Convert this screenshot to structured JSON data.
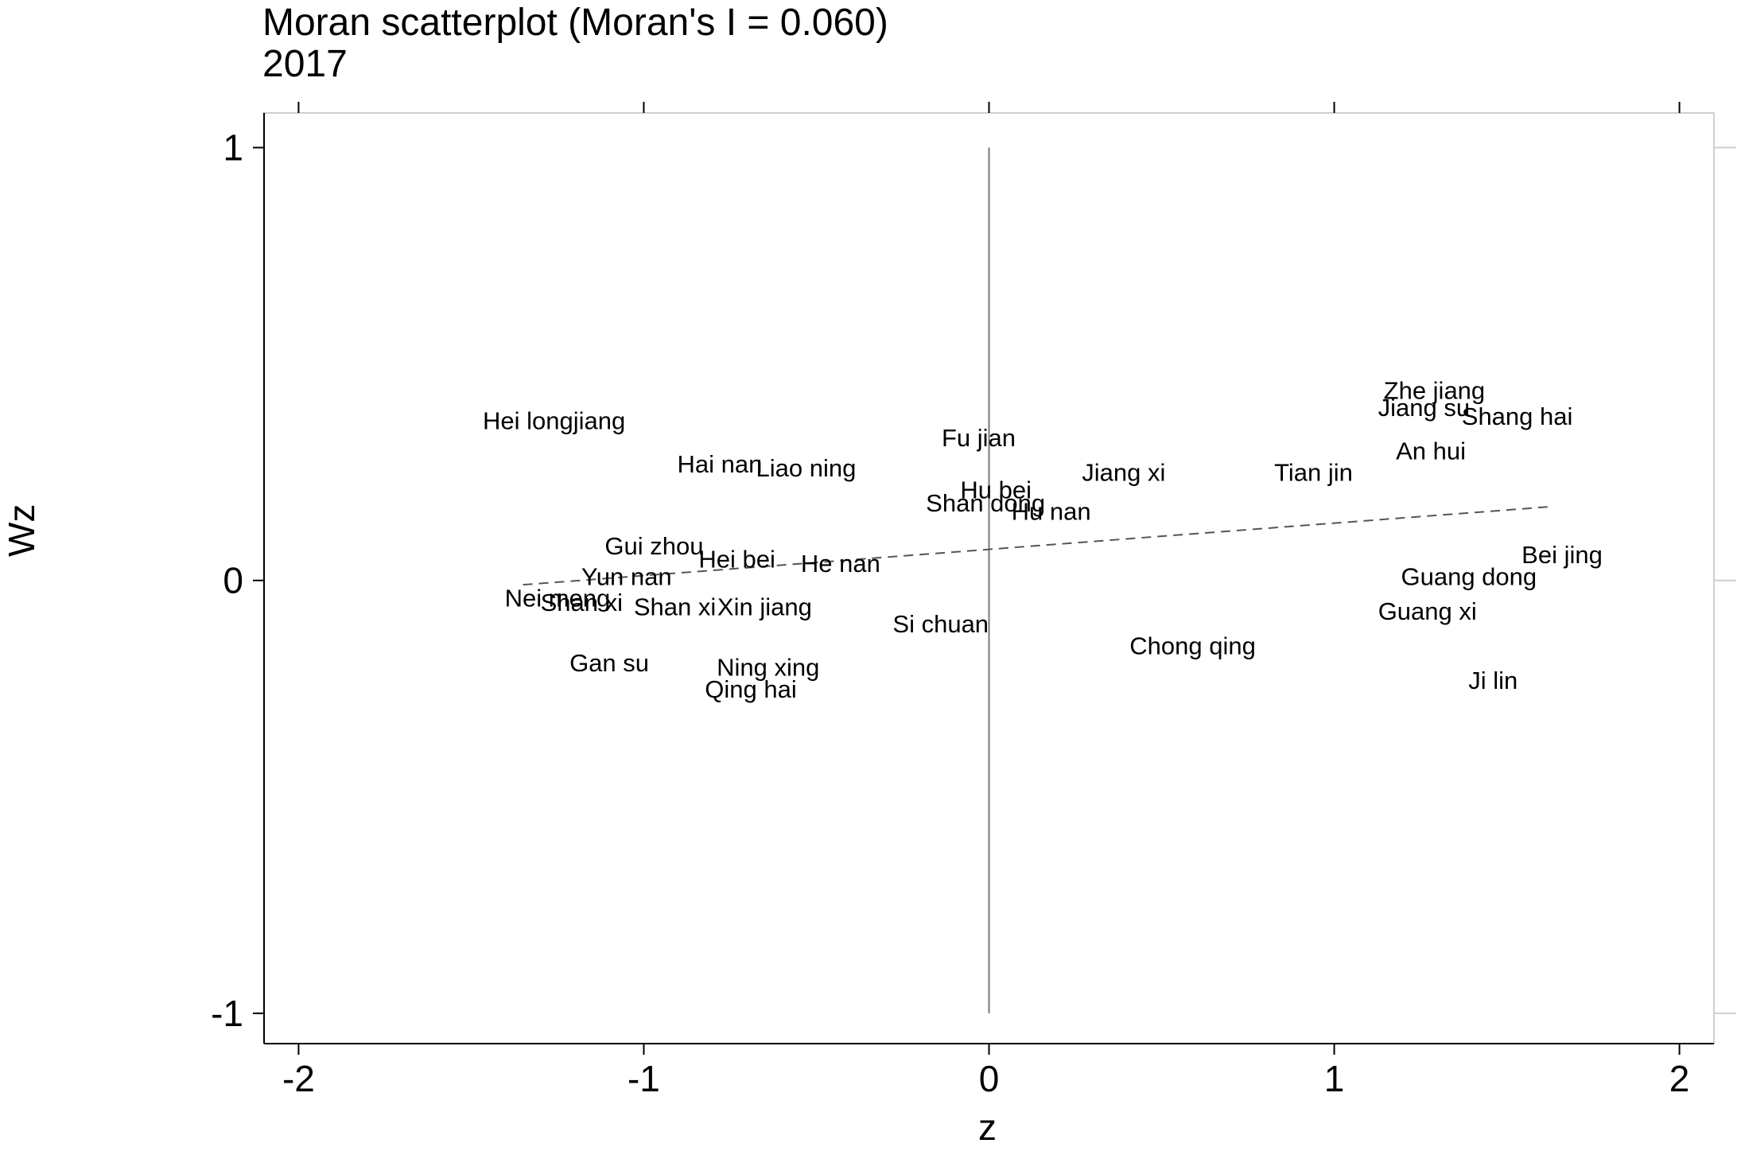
{
  "chart_data": {
    "type": "scatter",
    "title": "Moran scatterplot (Moran's I = 0.060)",
    "subtitle": "2017",
    "xlabel": "z",
    "ylabel": "Wz",
    "xlim": [
      -2.1,
      2.1
    ],
    "ylim": [
      -1.07,
      1.08
    ],
    "xticks": [
      -2,
      -1,
      0,
      1,
      2
    ],
    "yticks": [
      -1,
      0,
      1
    ],
    "xtick_labels": [
      "-2",
      "-1",
      "0",
      "1",
      "2"
    ],
    "ytick_labels": [
      "-1",
      "0",
      "1"
    ],
    "points": [
      {
        "label": "Hei longjiang",
        "x": -1.26,
        "y": 0.37
      },
      {
        "label": "Hai nan",
        "x": -0.78,
        "y": 0.27
      },
      {
        "label": "Liao ning",
        "x": -0.53,
        "y": 0.26
      },
      {
        "label": "Fu jian",
        "x": -0.03,
        "y": 0.33
      },
      {
        "label": "Jiang xi",
        "x": 0.39,
        "y": 0.25
      },
      {
        "label": "Tian jin",
        "x": 0.94,
        "y": 0.25
      },
      {
        "label": "Zhe jiang",
        "x": 1.29,
        "y": 0.44
      },
      {
        "label": "Jiang su",
        "x": 1.26,
        "y": 0.4
      },
      {
        "label": "Shang hai",
        "x": 1.53,
        "y": 0.38
      },
      {
        "label": "An hui",
        "x": 1.28,
        "y": 0.3
      },
      {
        "label": "Hu bei",
        "x": 0.02,
        "y": 0.21
      },
      {
        "label": "Shan dong",
        "x": -0.01,
        "y": 0.18
      },
      {
        "label": "Hu nan",
        "x": 0.18,
        "y": 0.16
      },
      {
        "label": "Gui zhou",
        "x": -0.97,
        "y": 0.08
      },
      {
        "label": "Hei bei",
        "x": -0.73,
        "y": 0.05
      },
      {
        "label": "He nan",
        "x": -0.43,
        "y": 0.04
      },
      {
        "label": "Bei jing",
        "x": 1.66,
        "y": 0.06
      },
      {
        "label": "Guang dong",
        "x": 1.39,
        "y": 0.01
      },
      {
        "label": "Yun nan",
        "x": -1.05,
        "y": 0.01
      },
      {
        "label": "Nei meng",
        "x": -1.25,
        "y": -0.04
      },
      {
        "label": "Shan xi",
        "x": -1.18,
        "y": -0.05
      },
      {
        "label": "Shan xi",
        "x": -0.91,
        "y": -0.06
      },
      {
        "label": "Xin jiang",
        "x": -0.65,
        "y": -0.06
      },
      {
        "label": "Guang xi",
        "x": 1.27,
        "y": -0.07
      },
      {
        "label": "Si chuan",
        "x": -0.14,
        "y": -0.1
      },
      {
        "label": "Chong qing",
        "x": 0.59,
        "y": -0.15
      },
      {
        "label": "Gan su",
        "x": -1.1,
        "y": -0.19
      },
      {
        "label": "Ning xing",
        "x": -0.64,
        "y": -0.2
      },
      {
        "label": "Qing hai",
        "x": -0.69,
        "y": -0.25
      },
      {
        "label": "Ji lin",
        "x": 1.46,
        "y": -0.23
      }
    ],
    "fit_line": {
      "style": "dashed",
      "x": [
        -1.35,
        1.62
      ],
      "y": [
        -0.01,
        0.17
      ]
    },
    "reference_lines": {
      "vertical_x": 0,
      "y_range": [
        -1,
        1
      ]
    },
    "grid": false,
    "colors": {
      "text": "#000000",
      "axis": "#000000",
      "fit": "#555555",
      "ref": "#777777"
    }
  }
}
